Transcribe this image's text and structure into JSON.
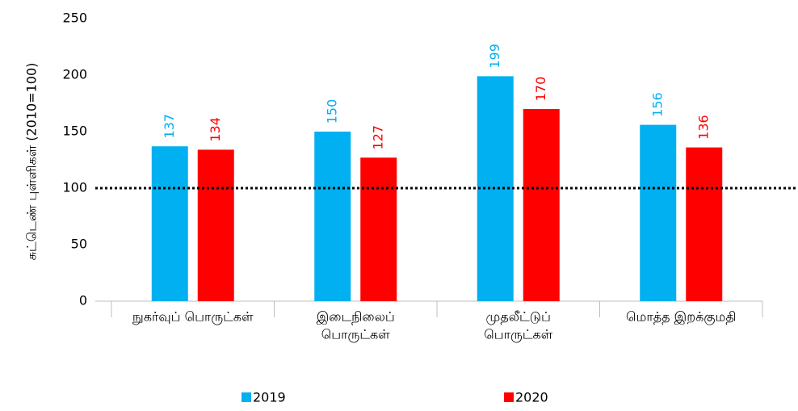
{
  "chart_data": {
    "type": "bar",
    "y_label": "சுட்டெண் புள்ளிகள் (2010=100)",
    "categories": [
      [
        "நுகர்வுப்  பொருட்கள்"
      ],
      [
        "இடைநிலைப்",
        "பொருட்கள்"
      ],
      [
        "முதலீட்டுப்",
        "பொருட்கள்"
      ],
      [
        "மொத்த  இறக்குமதி"
      ]
    ],
    "series": [
      {
        "name": "2019",
        "color": "#00b0f0",
        "values": [
          137,
          150,
          199,
          156
        ]
      },
      {
        "name": "2020",
        "color": "#ff0000",
        "values": [
          134,
          127,
          170,
          136
        ]
      }
    ],
    "ylim": [
      0,
      250
    ],
    "yticks": [
      0,
      50,
      100,
      150,
      200,
      250
    ],
    "reference_line": 100,
    "grid": false,
    "legend": "bottom"
  }
}
